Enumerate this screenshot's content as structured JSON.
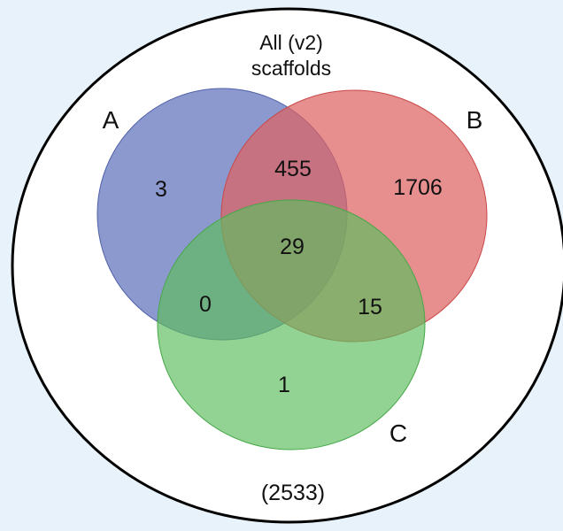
{
  "diagram": {
    "universe": {
      "title_line1": "All (v2)",
      "title_line2": "scaffolds",
      "total": "(2533)"
    },
    "sets": [
      {
        "key": "A",
        "label": "A",
        "color": "#7f8fc8"
      },
      {
        "key": "B",
        "label": "B",
        "color": "#e57a7a"
      },
      {
        "key": "C",
        "label": "C",
        "color": "#79c77a"
      }
    ],
    "regions": {
      "a_only": "3",
      "b_only": "1706",
      "c_only": "1",
      "ab": "455",
      "ac": "0",
      "bc": "15",
      "abc": "29"
    },
    "colors": {
      "background": "#e8f2fa",
      "universe_fill": "#ffffff",
      "outline": "#000000"
    }
  }
}
